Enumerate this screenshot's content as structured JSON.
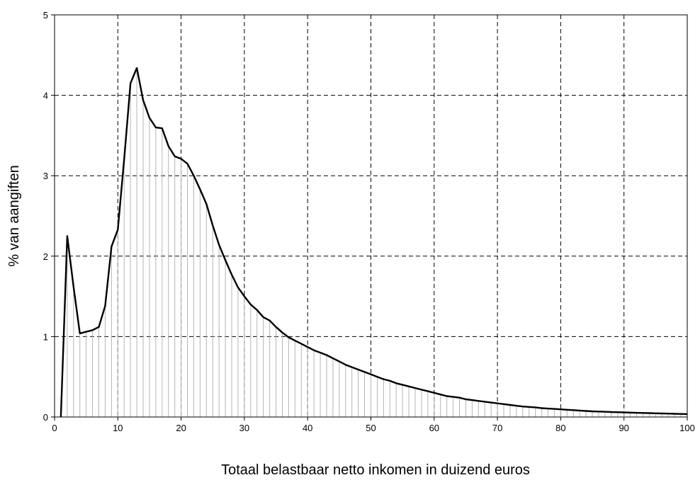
{
  "chart_data": {
    "type": "area",
    "title": "",
    "xlabel": "Totaal belastbaar netto inkomen in duizend euros",
    "ylabel": "% van aangiften",
    "xlim": [
      0,
      100
    ],
    "ylim": [
      0,
      5
    ],
    "x_ticks": [
      0,
      10,
      20,
      30,
      40,
      50,
      60,
      70,
      80,
      90,
      100
    ],
    "y_ticks": [
      0,
      1,
      2,
      3,
      4,
      5
    ],
    "grid": true,
    "grid_style": "dashed",
    "legend": "none",
    "colors": {
      "line": "#000000",
      "drop_lines": "#b5b5b5",
      "grid": "#000000"
    },
    "series": [
      {
        "x": [
          1,
          2,
          3,
          4,
          5,
          6,
          7,
          8,
          9,
          10,
          11,
          12,
          13,
          14,
          15,
          16,
          17,
          18,
          19,
          20,
          21,
          22,
          23,
          24,
          25,
          26,
          27,
          28,
          29,
          30,
          31,
          32,
          33,
          34,
          35,
          36,
          37,
          38,
          39,
          40,
          41,
          42,
          43,
          44,
          45,
          46,
          47,
          48,
          49,
          50,
          51,
          52,
          53,
          54,
          55,
          56,
          57,
          58,
          59,
          60,
          61,
          62,
          63,
          64,
          65,
          66,
          67,
          68,
          69,
          70,
          71,
          72,
          73,
          74,
          75,
          76,
          77,
          78,
          79,
          80,
          81,
          82,
          83,
          84,
          85,
          86,
          87,
          88,
          89,
          90,
          91,
          92,
          93,
          94,
          95,
          96,
          97,
          98,
          99,
          100
        ],
        "y": [
          0.0,
          2.25,
          1.62,
          1.04,
          1.06,
          1.08,
          1.12,
          1.38,
          2.12,
          2.33,
          3.2,
          4.15,
          4.34,
          3.94,
          3.72,
          3.6,
          3.59,
          3.37,
          3.24,
          3.21,
          3.15,
          3.0,
          2.83,
          2.65,
          2.38,
          2.14,
          1.95,
          1.77,
          1.61,
          1.5,
          1.4,
          1.33,
          1.24,
          1.2,
          1.12,
          1.05,
          0.99,
          0.95,
          0.91,
          0.87,
          0.83,
          0.8,
          0.77,
          0.73,
          0.69,
          0.65,
          0.62,
          0.59,
          0.56,
          0.53,
          0.5,
          0.47,
          0.45,
          0.42,
          0.4,
          0.38,
          0.36,
          0.34,
          0.32,
          0.3,
          0.28,
          0.26,
          0.25,
          0.24,
          0.22,
          0.21,
          0.2,
          0.19,
          0.18,
          0.17,
          0.16,
          0.15,
          0.14,
          0.13,
          0.125,
          0.12,
          0.11,
          0.105,
          0.1,
          0.095,
          0.09,
          0.085,
          0.08,
          0.075,
          0.07,
          0.068,
          0.065,
          0.062,
          0.06,
          0.057,
          0.055,
          0.052,
          0.05,
          0.048,
          0.046,
          0.044,
          0.042,
          0.04,
          0.038,
          0.036
        ]
      }
    ]
  }
}
